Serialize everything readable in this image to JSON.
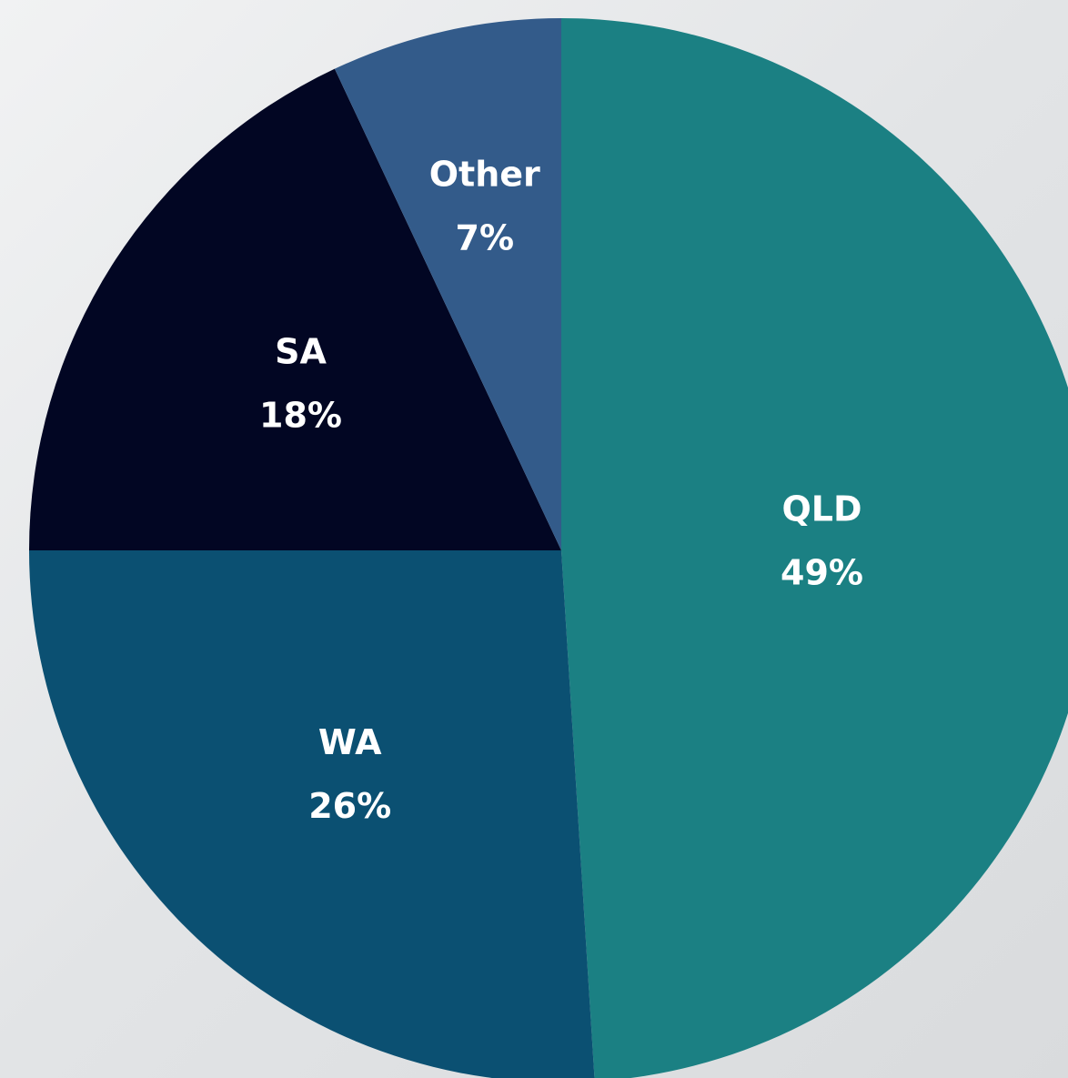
{
  "chart_data": {
    "type": "pie",
    "categories": [
      "QLD",
      "WA",
      "SA",
      "Other"
    ],
    "values": [
      49,
      26,
      18,
      7
    ],
    "value_labels": [
      "49%",
      "26%",
      "18%",
      "7%"
    ],
    "colors": [
      "#1b8083",
      "#0b5072",
      "#020623",
      "#335b8a"
    ]
  }
}
